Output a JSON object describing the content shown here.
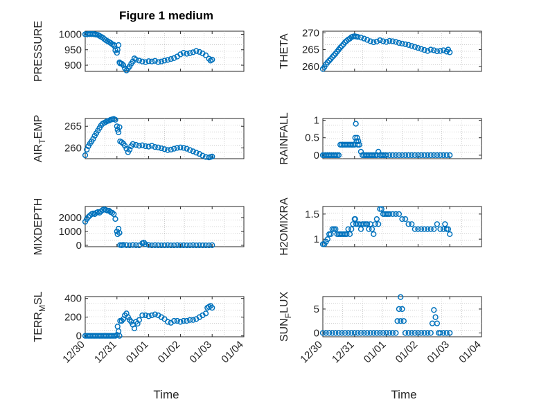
{
  "chart_data": {
    "type": "scatter",
    "title": "Figure 1 medium",
    "marker_color": "#0072bd",
    "x_domain": [
      0,
      5
    ],
    "x_ticks": [
      0,
      1,
      2,
      3,
      4,
      5
    ],
    "x_tick_labels": [
      "12/30",
      "12/31",
      "01/01",
      "01/02",
      "01/03",
      "01/04"
    ],
    "xlabel": "Time",
    "panels": [
      {
        "id": "pressure",
        "ylabel": "PRESSURE",
        "ylim": [
          880,
          1010
        ],
        "yticks": [
          900,
          950,
          1000
        ],
        "x": [
          0.0,
          0.05,
          0.1,
          0.15,
          0.2,
          0.25,
          0.3,
          0.35,
          0.4,
          0.45,
          0.5,
          0.55,
          0.6,
          0.65,
          0.7,
          0.75,
          0.8,
          0.85,
          0.9,
          0.92,
          0.95,
          1.0,
          1.02,
          1.05,
          1.08,
          1.1,
          1.15,
          1.2,
          1.25,
          1.3,
          1.35,
          1.4,
          1.45,
          1.5,
          1.55,
          1.6,
          1.7,
          1.8,
          1.9,
          2.0,
          2.1,
          2.2,
          2.3,
          2.4,
          2.5,
          2.6,
          2.7,
          2.8,
          2.9,
          3.0,
          3.1,
          3.2,
          3.3,
          3.4,
          3.5,
          3.6,
          3.7,
          3.8,
          3.9,
          3.95,
          4.0
        ],
        "y": [
          1000,
          1000,
          1001,
          1001,
          1001,
          1001,
          1000,
          999,
          998,
          995,
          992,
          989,
          985,
          981,
          978,
          975,
          972,
          968,
          966,
          962,
          948,
          940,
          950,
          965,
          909,
          906,
          905,
          900,
          890,
          883,
          890,
          896,
          905,
          912,
          922,
          918,
          915,
          912,
          910,
          913,
          912,
          914,
          910,
          912,
          915,
          917,
          920,
          923,
          928,
          935,
          940,
          937,
          939,
          942,
          946,
          943,
          938,
          932,
          921,
          915,
          918
        ]
      },
      {
        "id": "theta",
        "ylabel": "THETA",
        "ylim": [
          258.5,
          270.5
        ],
        "yticks": [
          260,
          265,
          270
        ],
        "x": [
          0.0,
          0.05,
          0.1,
          0.15,
          0.2,
          0.25,
          0.3,
          0.35,
          0.4,
          0.45,
          0.5,
          0.55,
          0.6,
          0.65,
          0.7,
          0.75,
          0.8,
          0.85,
          0.9,
          0.95,
          1.0,
          1.05,
          1.1,
          1.2,
          1.3,
          1.4,
          1.5,
          1.6,
          1.7,
          1.8,
          1.9,
          2.0,
          2.1,
          2.2,
          2.3,
          2.4,
          2.5,
          2.6,
          2.7,
          2.8,
          2.9,
          3.0,
          3.1,
          3.2,
          3.3,
          3.4,
          3.5,
          3.6,
          3.7,
          3.8,
          3.9,
          3.95,
          4.0
        ],
        "y": [
          259.2,
          259.8,
          260.6,
          261.2,
          261.7,
          262.2,
          262.8,
          263.3,
          263.8,
          264.4,
          265.0,
          265.6,
          266.1,
          266.6,
          267.2,
          267.6,
          268.0,
          268.3,
          268.7,
          268.9,
          269.0,
          268.9,
          268.8,
          268.6,
          268.3,
          267.9,
          267.5,
          267.2,
          267.4,
          267.8,
          267.5,
          267.3,
          267.6,
          267.5,
          267.3,
          267.0,
          266.8,
          266.6,
          266.4,
          266.1,
          265.8,
          265.5,
          265.2,
          264.9,
          264.6,
          265.0,
          264.8,
          264.5,
          264.6,
          264.8,
          264.4,
          265.0,
          264.2
        ]
      },
      {
        "id": "air-temp",
        "ylabel": "AIR_TEMP",
        "ylim": [
          257.5,
          266.8
        ],
        "yticks": [
          260,
          265
        ],
        "x": [
          0.0,
          0.05,
          0.1,
          0.15,
          0.2,
          0.25,
          0.3,
          0.35,
          0.4,
          0.45,
          0.5,
          0.55,
          0.6,
          0.65,
          0.7,
          0.75,
          0.8,
          0.85,
          0.9,
          0.95,
          1.0,
          1.02,
          1.05,
          1.08,
          1.1,
          1.15,
          1.2,
          1.25,
          1.3,
          1.35,
          1.4,
          1.45,
          1.5,
          1.6,
          1.7,
          1.8,
          1.9,
          2.0,
          2.1,
          2.2,
          2.3,
          2.4,
          2.5,
          2.6,
          2.7,
          2.8,
          2.9,
          3.0,
          3.1,
          3.2,
          3.3,
          3.4,
          3.5,
          3.6,
          3.7,
          3.8,
          3.9,
          3.95,
          4.0
        ],
        "y": [
          258.3,
          259.6,
          260.4,
          261.0,
          261.5,
          262.1,
          262.8,
          263.4,
          264.0,
          264.6,
          265.2,
          265.6,
          265.8,
          266.0,
          266.2,
          266.3,
          266.5,
          266.6,
          266.7,
          266.5,
          265.0,
          264.2,
          263.6,
          264.8,
          261.5,
          261.3,
          261.0,
          260.5,
          259.8,
          259.0,
          259.6,
          260.4,
          260.9,
          260.7,
          260.5,
          260.6,
          260.4,
          260.3,
          260.5,
          260.2,
          260.1,
          259.9,
          259.7,
          259.5,
          259.6,
          259.8,
          260.0,
          260.1,
          260.0,
          259.8,
          259.5,
          259.2,
          258.9,
          258.6,
          258.2,
          257.9,
          257.8,
          257.9,
          258.0
        ]
      },
      {
        "id": "rainfall",
        "ylabel": "RAINFALL",
        "ylim": [
          -0.1,
          1.05
        ],
        "yticks": [
          0,
          0.5,
          1
        ],
        "x": [
          0.0,
          0.05,
          0.1,
          0.15,
          0.2,
          0.25,
          0.3,
          0.35,
          0.4,
          0.45,
          0.5,
          0.55,
          0.6,
          0.65,
          0.7,
          0.75,
          0.8,
          0.85,
          0.9,
          0.95,
          1.0,
          1.02,
          1.04,
          1.06,
          1.08,
          1.1,
          1.12,
          1.15,
          1.2,
          1.25,
          1.3,
          1.35,
          1.4,
          1.45,
          1.5,
          1.55,
          1.6,
          1.65,
          1.7,
          1.75,
          1.8,
          1.85,
          1.9,
          1.95,
          2.0,
          2.1,
          2.2,
          2.3,
          2.4,
          2.5,
          2.6,
          2.7,
          2.8,
          2.9,
          3.0,
          3.1,
          3.2,
          3.3,
          3.4,
          3.5,
          3.6,
          3.7,
          3.8,
          3.9,
          4.0
        ],
        "y": [
          0,
          0,
          0,
          0,
          0,
          0,
          0,
          0,
          0,
          0,
          0,
          0.3,
          0.3,
          0.3,
          0.3,
          0.3,
          0.3,
          0.3,
          0.3,
          0.3,
          0.3,
          0.5,
          0.9,
          0.4,
          0.5,
          0.3,
          0.4,
          0.3,
          0.1,
          0,
          0,
          0,
          0,
          0,
          0,
          0,
          0,
          0,
          0,
          0.1,
          0,
          0,
          0,
          0,
          0,
          0,
          0,
          0,
          0,
          0,
          0,
          0,
          0,
          0,
          0,
          0,
          0,
          0,
          0,
          0,
          0,
          0,
          0,
          0,
          0
        ]
      },
      {
        "id": "mixdepth",
        "ylabel": "MIXDEPTH",
        "ylim": [
          -100,
          2800
        ],
        "yticks": [
          0,
          1000,
          2000
        ],
        "x": [
          0.0,
          0.05,
          0.1,
          0.15,
          0.2,
          0.25,
          0.3,
          0.35,
          0.4,
          0.45,
          0.5,
          0.55,
          0.6,
          0.65,
          0.7,
          0.75,
          0.8,
          0.85,
          0.9,
          0.95,
          1.0,
          1.02,
          1.05,
          1.08,
          1.1,
          1.15,
          1.2,
          1.3,
          1.4,
          1.5,
          1.6,
          1.7,
          1.8,
          1.85,
          1.9,
          2.0,
          2.1,
          2.2,
          2.3,
          2.4,
          2.5,
          2.6,
          2.7,
          2.8,
          2.9,
          3.0,
          3.1,
          3.2,
          3.3,
          3.4,
          3.5,
          3.6,
          3.7,
          3.8,
          3.9,
          4.0
        ],
        "y": [
          1700,
          1900,
          2050,
          2150,
          2250,
          2300,
          2250,
          2350,
          2400,
          2350,
          2450,
          2550,
          2600,
          2550,
          2500,
          2500,
          2400,
          2350,
          2250,
          1900,
          1000,
          800,
          1200,
          900,
          20,
          10,
          30,
          10,
          0,
          20,
          10,
          0,
          150,
          200,
          80,
          20,
          0,
          10,
          5,
          0,
          0,
          10,
          0,
          0,
          10,
          0,
          5,
          0,
          0,
          10,
          0,
          5,
          0,
          0,
          0,
          10
        ]
      },
      {
        "id": "h2omixra",
        "ylabel": "H2OMIXRA",
        "ylim": [
          0.85,
          1.65
        ],
        "yticks": [
          1,
          1.5
        ],
        "x": [
          0.0,
          0.05,
          0.1,
          0.15,
          0.2,
          0.25,
          0.3,
          0.35,
          0.4,
          0.45,
          0.5,
          0.55,
          0.6,
          0.65,
          0.7,
          0.75,
          0.8,
          0.85,
          0.9,
          0.95,
          1.0,
          1.02,
          1.05,
          1.1,
          1.15,
          1.2,
          1.25,
          1.3,
          1.35,
          1.4,
          1.45,
          1.5,
          1.55,
          1.6,
          1.65,
          1.7,
          1.75,
          1.8,
          1.85,
          1.9,
          1.95,
          2.0,
          2.05,
          2.1,
          2.2,
          2.3,
          2.4,
          2.5,
          2.6,
          2.7,
          2.8,
          2.9,
          3.0,
          3.1,
          3.2,
          3.3,
          3.4,
          3.5,
          3.6,
          3.7,
          3.8,
          3.85,
          3.9,
          3.95,
          4.0
        ],
        "y": [
          0.9,
          0.9,
          0.95,
          1.0,
          1.1,
          1.1,
          1.2,
          1.2,
          1.2,
          1.1,
          1.1,
          1.1,
          1.1,
          1.1,
          1.1,
          1.1,
          1.2,
          1.1,
          1.2,
          1.3,
          1.4,
          1.4,
          1.3,
          1.3,
          1.3,
          1.2,
          1.3,
          1.3,
          1.3,
          1.3,
          1.2,
          1.3,
          1.2,
          1.1,
          1.3,
          1.4,
          1.3,
          1.6,
          1.6,
          1.5,
          1.5,
          1.5,
          1.5,
          1.5,
          1.5,
          1.5,
          1.5,
          1.4,
          1.4,
          1.3,
          1.3,
          1.2,
          1.2,
          1.2,
          1.2,
          1.2,
          1.2,
          1.2,
          1.3,
          1.2,
          1.2,
          1.3,
          1.2,
          1.2,
          1.1
        ]
      },
      {
        "id": "terr-msl",
        "ylabel": "TERR_MSL",
        "ylim": [
          -10,
          420
        ],
        "yticks": [
          0,
          200,
          400
        ],
        "x": [
          0.0,
          0.05,
          0.1,
          0.15,
          0.2,
          0.25,
          0.3,
          0.35,
          0.4,
          0.45,
          0.5,
          0.55,
          0.6,
          0.65,
          0.7,
          0.75,
          0.8,
          0.85,
          0.9,
          0.95,
          1.0,
          1.02,
          1.05,
          1.08,
          1.1,
          1.15,
          1.2,
          1.25,
          1.3,
          1.35,
          1.4,
          1.45,
          1.5,
          1.55,
          1.6,
          1.65,
          1.7,
          1.8,
          1.9,
          2.0,
          2.1,
          2.2,
          2.3,
          2.4,
          2.5,
          2.6,
          2.7,
          2.8,
          2.9,
          3.0,
          3.1,
          3.2,
          3.3,
          3.4,
          3.5,
          3.6,
          3.7,
          3.8,
          3.85,
          3.9,
          3.95,
          4.0
        ],
        "y": [
          0,
          0,
          0,
          0,
          0,
          0,
          0,
          0,
          0,
          0,
          0,
          0,
          0,
          0,
          0,
          0,
          0,
          0,
          0,
          0,
          10,
          100,
          50,
          0,
          160,
          160,
          180,
          220,
          240,
          200,
          170,
          150,
          120,
          80,
          150,
          130,
          170,
          220,
          220,
          210,
          220,
          230,
          220,
          200,
          180,
          150,
          140,
          160,
          160,
          150,
          160,
          160,
          170,
          170,
          180,
          200,
          220,
          240,
          300,
          310,
          320,
          300
        ]
      },
      {
        "id": "sun-flux",
        "ylabel": "SUN_FLUX",
        "ylim": [
          -0.8,
          7.6
        ],
        "yticks": [
          0,
          5
        ],
        "x": [
          0.0,
          0.1,
          0.2,
          0.3,
          0.4,
          0.5,
          0.6,
          0.7,
          0.8,
          0.9,
          1.0,
          1.1,
          1.2,
          1.3,
          1.4,
          1.5,
          1.6,
          1.7,
          1.8,
          1.9,
          2.0,
          2.1,
          2.2,
          2.3,
          2.35,
          2.4,
          2.45,
          2.45,
          2.5,
          2.55,
          2.6,
          2.7,
          2.8,
          2.9,
          3.0,
          3.1,
          3.2,
          3.3,
          3.4,
          3.45,
          3.5,
          3.55,
          3.6,
          3.65,
          3.7,
          3.8,
          3.9,
          4.0
        ],
        "y": [
          0,
          0,
          0,
          0,
          0,
          0,
          0,
          0,
          0,
          0,
          0,
          0,
          0,
          0,
          0,
          0,
          0,
          0,
          0,
          0,
          0,
          0,
          0,
          0,
          2.5,
          5,
          7.5,
          2.5,
          5,
          2.5,
          0,
          0,
          0,
          0,
          0,
          0,
          0,
          0,
          0,
          2,
          4.8,
          3.3,
          2,
          0,
          0,
          0,
          0,
          0
        ]
      }
    ]
  }
}
